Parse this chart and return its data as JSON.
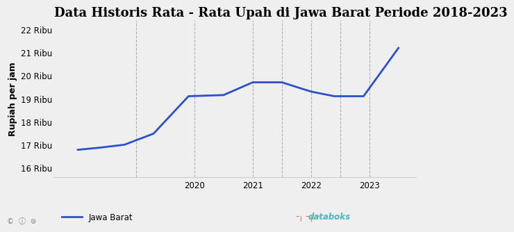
{
  "title": "Data Historis Rata - Rata Upah di Jawa Barat Periode 2018-2023",
  "ylabel": "Rupiah per jam",
  "line_color": "#2b4fce",
  "line_width": 2.0,
  "background_color": "#efefef",
  "x_values": [
    2018.0,
    2018.4,
    2018.8,
    2019.3,
    2019.9,
    2020.5,
    2021.0,
    2021.5,
    2022.0,
    2022.4,
    2022.9,
    2023.5
  ],
  "y_values": [
    16780,
    16880,
    17000,
    17480,
    19100,
    19150,
    19700,
    19700,
    19300,
    19100,
    19100,
    21194
  ],
  "ytick_values": [
    16000,
    17000,
    18000,
    19000,
    20000,
    21000,
    22000
  ],
  "ytick_labels": [
    "16 Ribu",
    "17 Ribu",
    "18 Ribu",
    "19 Ribu",
    "20 Ribu",
    "21 Ribu",
    "22 Ribu"
  ],
  "ylim": [
    15600,
    22400
  ],
  "xlim": [
    2017.6,
    2023.8
  ],
  "vgrid_x": [
    2019.0,
    2020.0,
    2021.0,
    2021.5,
    2022.0,
    2022.5,
    2023.0
  ],
  "xtick_values": [
    2020,
    2021,
    2022,
    2023
  ],
  "xtick_labels": [
    "2020",
    "2021",
    "2022",
    "2023"
  ],
  "legend_label": "Jawa Barat",
  "title_fontsize": 13,
  "axis_fontsize": 9,
  "tick_fontsize": 8.5,
  "databoks_text_color": "#4ab8c1",
  "databoks_icon_color": "#e07030",
  "copyright_color": "#888888"
}
